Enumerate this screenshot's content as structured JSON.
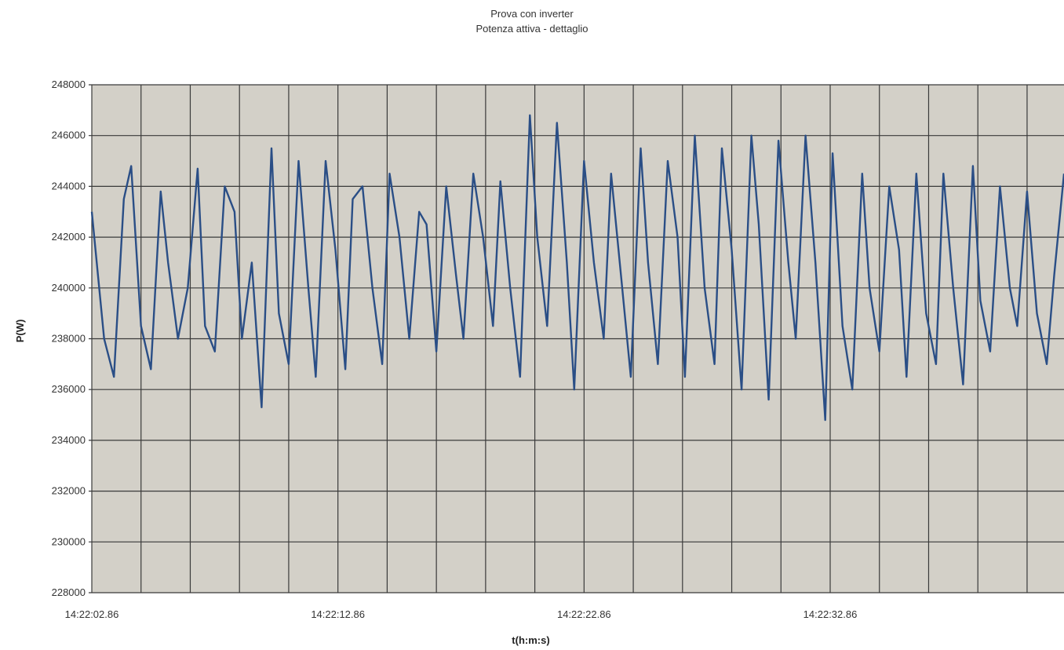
{
  "chart_data": {
    "type": "line",
    "title": "Prova con inverter",
    "subtitle": "Potenza attiva - dettaglio",
    "xlabel": "t(h:m:s)",
    "ylabel": "P(W)",
    "x_tick_labels": [
      "14:22:02.86",
      "14:22:12.86",
      "14:22:22.86",
      "14:22:32.86"
    ],
    "xlim": [
      0,
      39.5
    ],
    "x_label_step": 10,
    "x_grid_step": 2,
    "ylim": [
      228000,
      248000
    ],
    "y_tick_step": 2000,
    "y_ticks": [
      228000,
      230000,
      232000,
      234000,
      236000,
      238000,
      240000,
      242000,
      244000,
      246000,
      248000
    ],
    "grid": true,
    "legend": "none",
    "colors": {
      "series": "#2a4e86",
      "plot_bg": "#d3d0c8",
      "grid": "#3a3a3a",
      "page_bg": "#ffffff"
    },
    "series": [
      {
        "x": [
          0.0,
          0.5,
          0.9,
          1.3,
          1.6,
          2.0,
          2.4,
          2.8,
          3.1,
          3.5,
          3.9,
          4.3,
          4.6,
          5.0,
          5.4,
          5.8,
          6.1,
          6.5,
          6.9,
          7.3,
          7.6,
          8.0,
          8.4,
          8.8,
          9.1,
          9.5,
          9.9,
          10.3,
          10.6,
          11.0,
          11.4,
          11.8,
          12.1,
          12.5,
          12.9,
          13.3,
          13.6,
          14.0,
          14.4,
          14.8,
          15.1,
          15.5,
          15.9,
          16.3,
          16.6,
          17.0,
          17.4,
          17.8,
          18.1,
          18.5,
          18.9,
          19.3,
          19.6,
          20.0,
          20.4,
          20.8,
          21.1,
          21.5,
          21.9,
          22.3,
          22.6,
          23.0,
          23.4,
          23.8,
          24.1,
          24.5,
          24.9,
          25.3,
          25.6,
          26.0,
          26.4,
          26.8,
          27.1,
          27.5,
          27.9,
          28.3,
          28.6,
          29.0,
          29.4,
          29.8,
          30.1,
          30.5,
          30.9,
          31.3,
          31.6,
          32.0,
          32.4,
          32.8,
          33.1,
          33.5,
          33.9,
          34.3,
          34.6,
          35.0,
          35.4,
          35.8,
          36.1,
          36.5,
          36.9,
          37.3,
          37.6,
          38.0,
          38.4,
          38.8,
          39.1,
          39.5
        ],
        "values": [
          243000,
          238000,
          236500,
          243500,
          244800,
          238500,
          236800,
          243800,
          241000,
          238000,
          240000,
          244700,
          238500,
          237500,
          244000,
          243000,
          238000,
          241000,
          235300,
          245500,
          239000,
          237000,
          245000,
          240000,
          236500,
          245000,
          241500,
          236800,
          243500,
          244000,
          240000,
          237000,
          244500,
          242000,
          238000,
          243000,
          242500,
          237500,
          244000,
          240500,
          238000,
          244500,
          242000,
          238500,
          244200,
          240000,
          236500,
          246800,
          242000,
          238500,
          246500,
          241000,
          236000,
          245000,
          241000,
          238000,
          244500,
          240500,
          236500,
          245500,
          241000,
          237000,
          245000,
          242000,
          236500,
          246000,
          240000,
          237000,
          245500,
          241500,
          236000,
          246000,
          242500,
          235600,
          245800,
          241000,
          238000,
          246000,
          241000,
          234800,
          245300,
          238500,
          236000,
          244500,
          240000,
          237500,
          244000,
          241500,
          236500,
          244500,
          239000,
          237000,
          244500,
          240000,
          236200,
          244800,
          239500,
          237500,
          244000,
          240000,
          238500,
          243800,
          239000,
          237000,
          240500,
          244500
        ]
      }
    ]
  }
}
